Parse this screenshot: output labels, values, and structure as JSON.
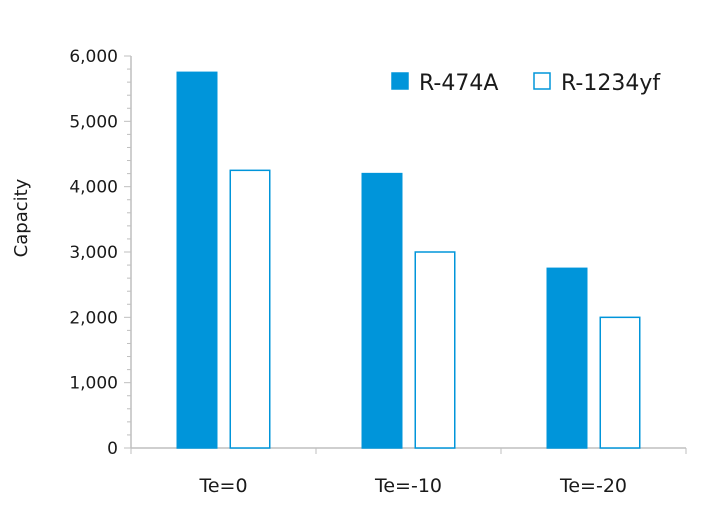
{
  "chart_data": {
    "type": "bar",
    "title": "",
    "xlabel": "",
    "ylabel": "Capacity",
    "ylim": [
      0,
      6000
    ],
    "yticks": [
      0,
      1000,
      2000,
      3000,
      4000,
      5000,
      6000
    ],
    "ytick_labels": [
      "0",
      "1,000",
      "2,000",
      "3,000",
      "4,000",
      "5,000",
      "6,000"
    ],
    "categories": [
      "Te=0",
      "Te=-10",
      "Te=-20"
    ],
    "series": [
      {
        "name": "R-474A",
        "values": [
          5750,
          4200,
          2750
        ],
        "fill": "#0095DA",
        "stroke": "#0095DA"
      },
      {
        "name": "R-1234yf",
        "values": [
          4250,
          3000,
          2000
        ],
        "fill": "#ffffff",
        "stroke": "#0095DA"
      }
    ],
    "grid": false,
    "legend_position": "top-right"
  }
}
